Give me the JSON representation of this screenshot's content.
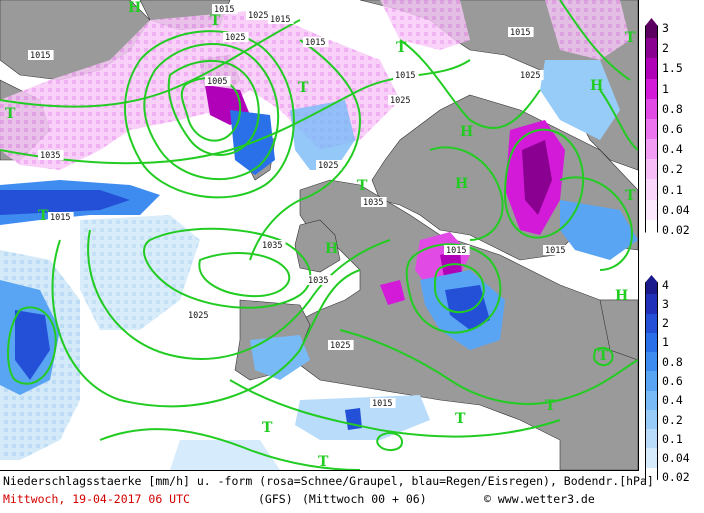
{
  "footer": {
    "line1": "Niederschlagsstaerke [mm/h] u. -form (rosa=Schnee/Graupel, blau=Regen/Eisregen), Bodendr.[hPa]",
    "date": "Mittwoch, 19-04-2017  06 UTC",
    "model": "(GFS)",
    "run": "(Mittwoch 00 + 06)",
    "copyright": "© www.wetter3.de"
  },
  "legend_snow": {
    "labels": [
      "3",
      "2",
      "1.5",
      "1",
      "0.8",
      "0.6",
      "0.4",
      "0.2",
      "0.1",
      "0.04",
      "0.02"
    ],
    "colors": [
      "#5b0060",
      "#8a0090",
      "#b000b8",
      "#d21ad8",
      "#e24ae6",
      "#ec74ef",
      "#f29cf4",
      "#f6bdf7",
      "#f9d6fa",
      "#fce8fc",
      "#ffffff"
    ]
  },
  "legend_rain": {
    "labels": [
      "4",
      "3",
      "2",
      "1",
      "0.8",
      "0.6",
      "0.4",
      "0.2",
      "0.1",
      "0.04",
      "0.02"
    ],
    "colors": [
      "#1a1a8c",
      "#2030b8",
      "#2450d8",
      "#2a70e8",
      "#3e8cf0",
      "#5aa4f4",
      "#78baf6",
      "#98ccf8",
      "#b8dcfa",
      "#d6ebfc",
      "#ffffff"
    ]
  },
  "pressure_labels": [
    "1015",
    "1015",
    "1015",
    "1015",
    "1015",
    "1015",
    "1025",
    "1025",
    "1025",
    "1025",
    "1025",
    "1025",
    "1035",
    "1035",
    "1035",
    "1035",
    "1015",
    "1025",
    "1015",
    "1005",
    "1015",
    "1015"
  ],
  "centers": [
    "H",
    "H",
    "H",
    "H",
    "H",
    "H",
    "T",
    "T",
    "T",
    "T",
    "T",
    "T",
    "T",
    "T",
    "T",
    "T",
    "T",
    "T",
    "T"
  ]
}
